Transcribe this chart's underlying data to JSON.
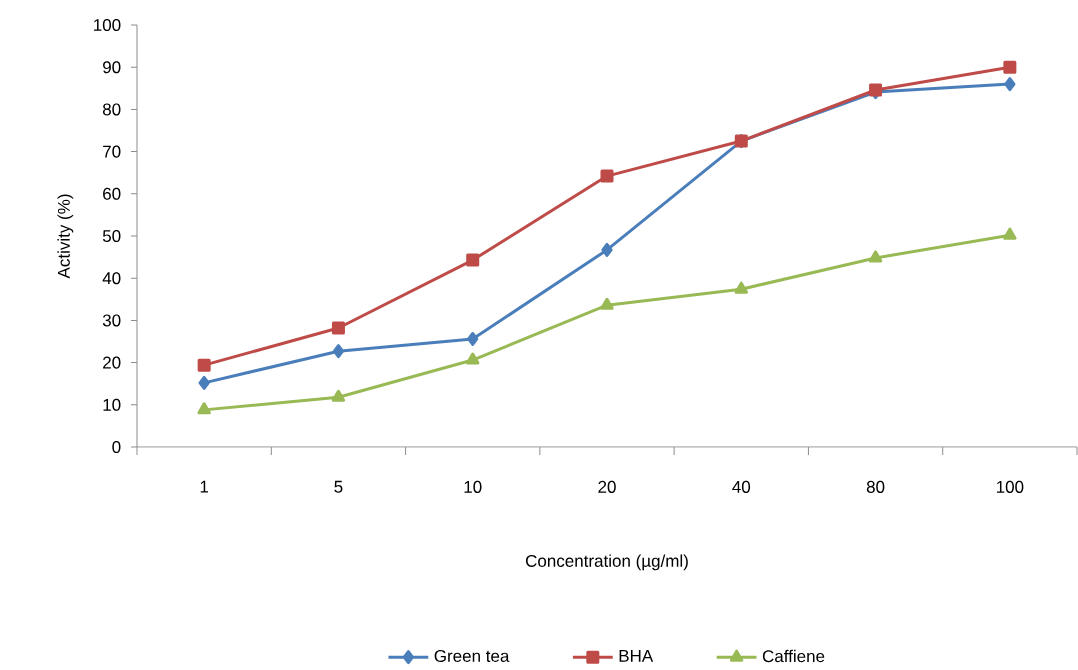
{
  "chart_data": {
    "type": "line",
    "xlabel": "Concentration (µg/ml)",
    "ylabel": "Activity (%)",
    "categories": [
      "1",
      "5",
      "10",
      "20",
      "40",
      "80",
      "100"
    ],
    "series": [
      {
        "name": "Green tea",
        "color": "#4a7ebb",
        "marker": "diamond",
        "values": [
          15.2,
          22.7,
          25.6,
          46.7,
          72.5,
          84.1,
          86
        ]
      },
      {
        "name": "BHA",
        "color": "#be4b48",
        "marker": "square",
        "values": [
          19.4,
          28.2,
          44.3,
          64.2,
          72.5,
          84.6,
          90
        ]
      },
      {
        "name": "Caffiene",
        "color": "#98b954",
        "marker": "triangle",
        "values": [
          8.8,
          11.8,
          20.6,
          33.6,
          37.4,
          44.8,
          50.2
        ]
      }
    ],
    "ylim": [
      0,
      100
    ],
    "yticks": [
      0,
      10,
      20,
      30,
      40,
      50,
      60,
      70,
      80,
      90,
      100
    ],
    "grid": false,
    "legend": "bottom"
  }
}
